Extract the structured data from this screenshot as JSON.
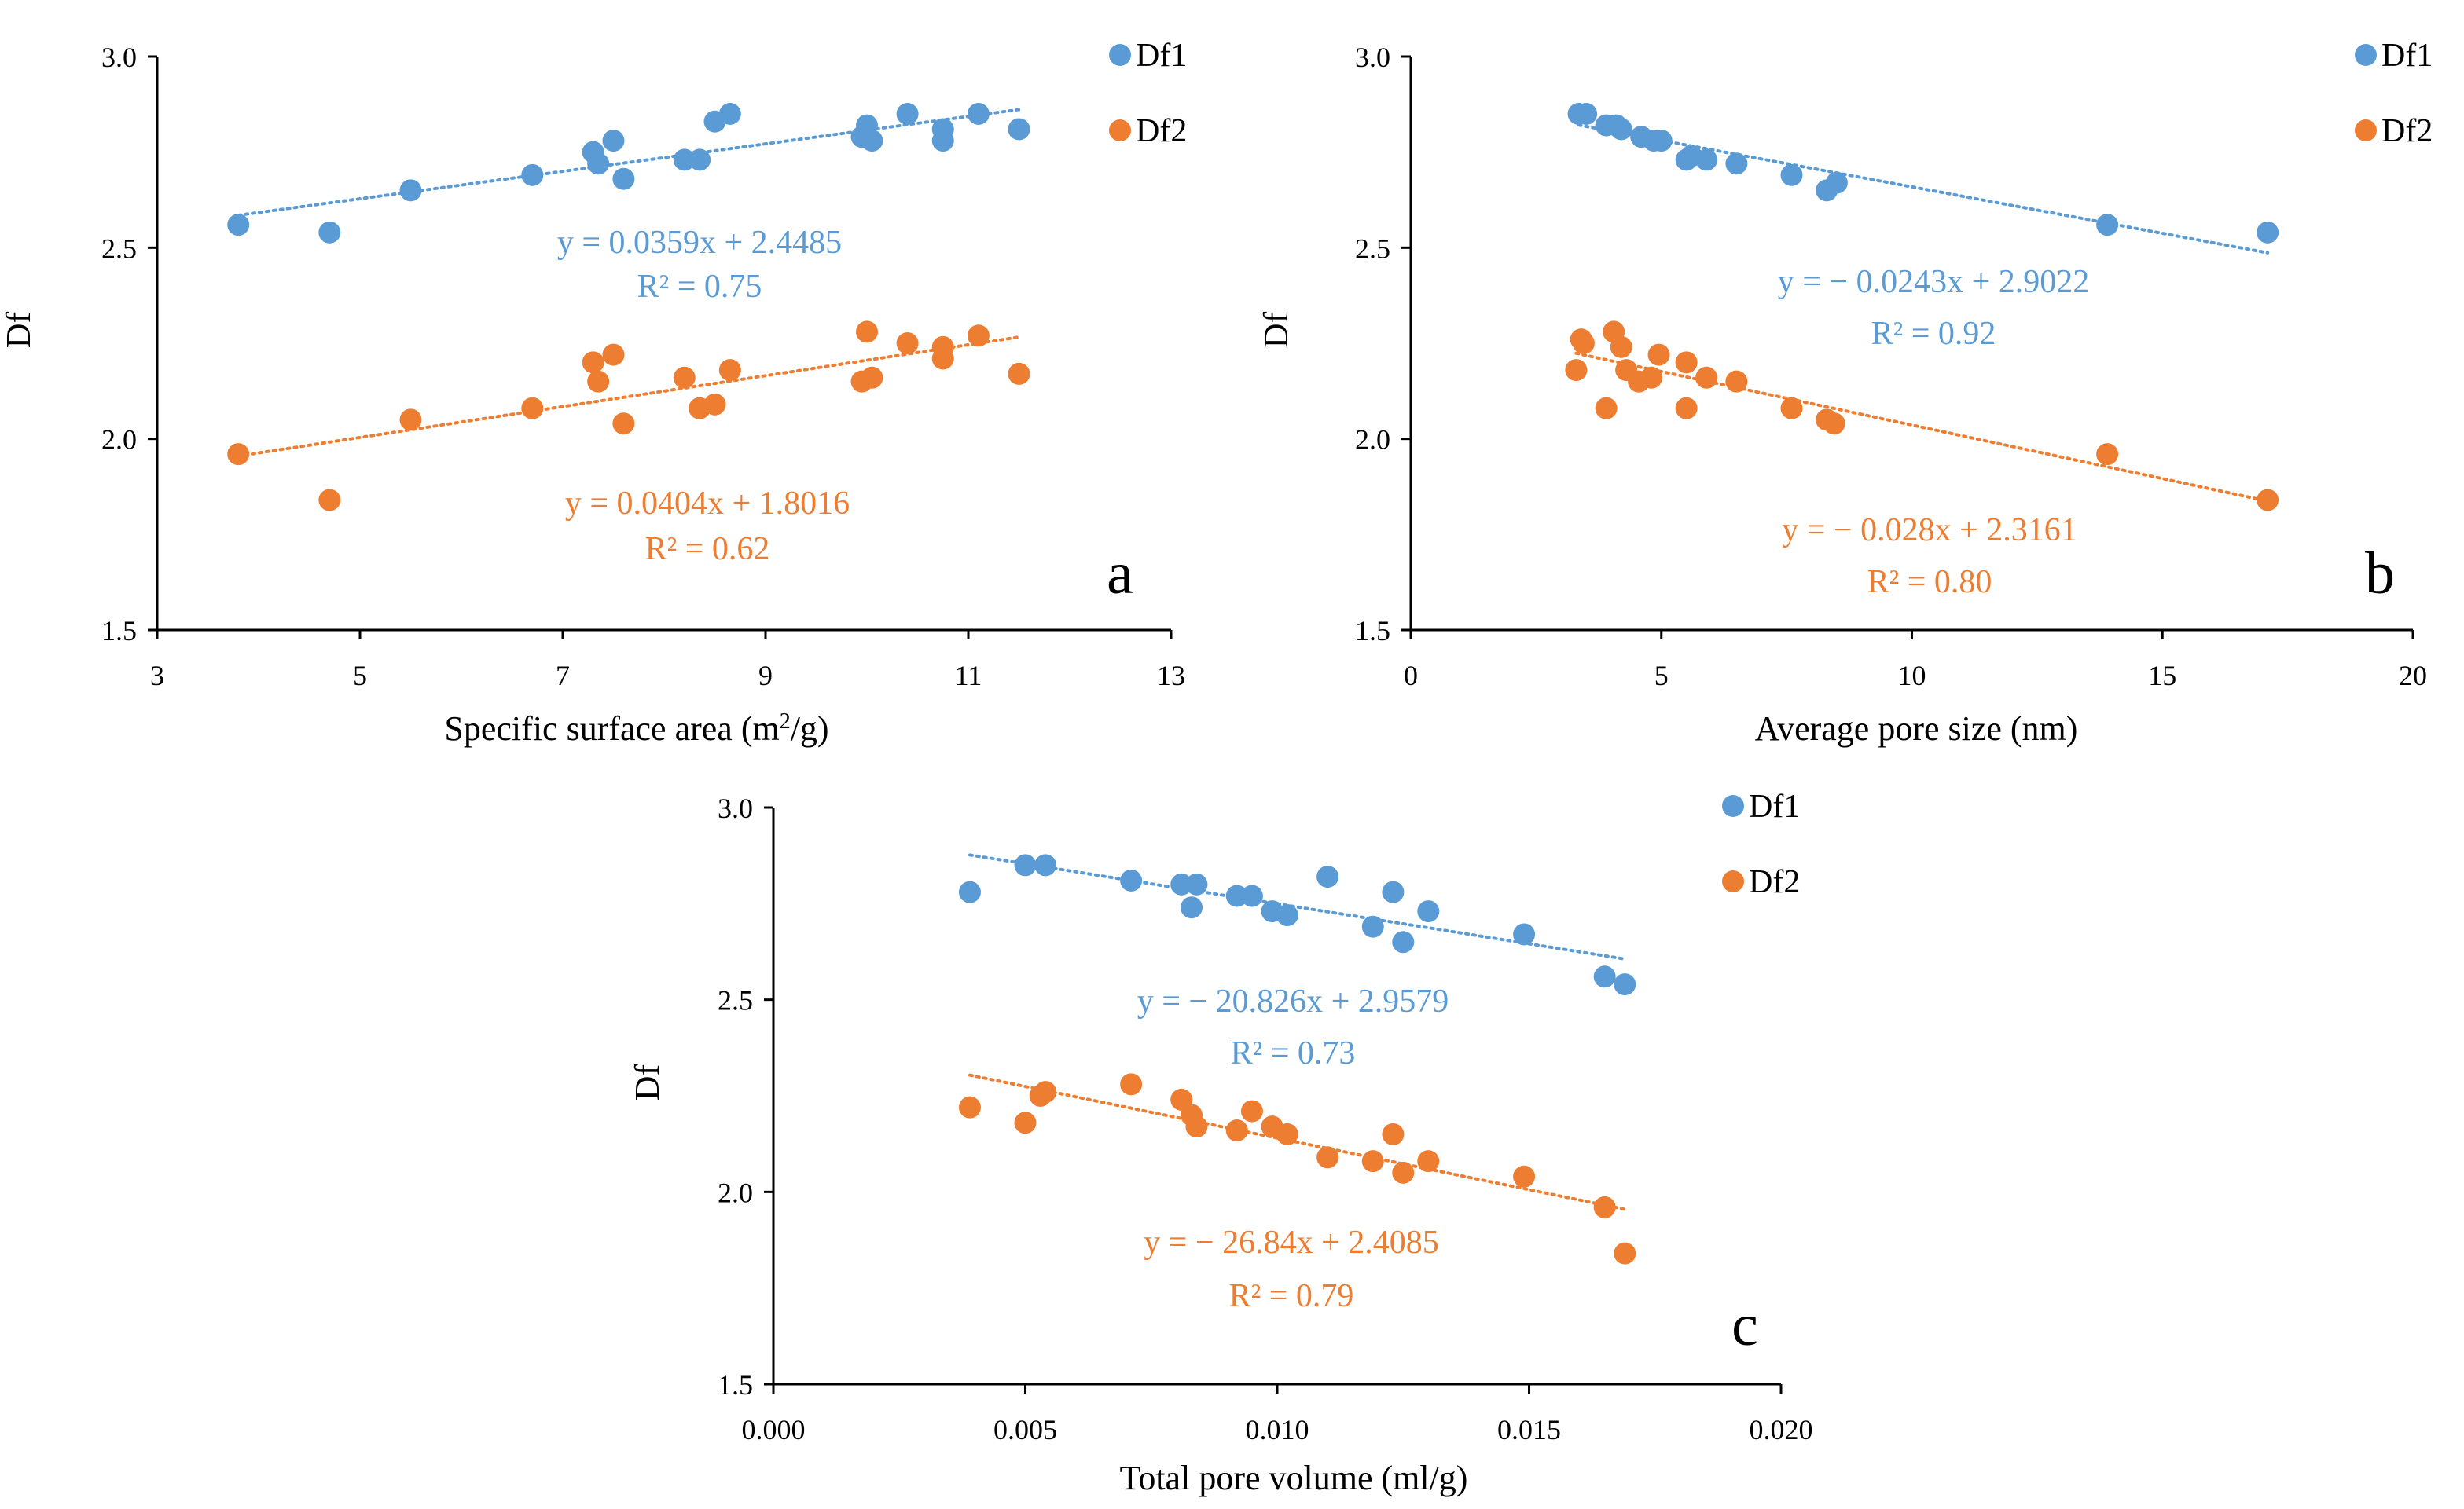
{
  "colors": {
    "df1": "#5B9BD5",
    "df2": "#ED7D31",
    "axis": "#000000",
    "tick_text": "#000000"
  },
  "chart_data": [
    {
      "type": "scatter",
      "panel_label": "a",
      "xlabel": "Specific surface area (m",
      "xlabel_sup": "2",
      "xlabel_tail": "/g)",
      "ylabel": "Df",
      "xlim": [
        3,
        13
      ],
      "ylim": [
        1.5,
        3.0
      ],
      "xticks": [
        3,
        5,
        7,
        9,
        11,
        13
      ],
      "xtick_labels": [
        "3",
        "5",
        "7",
        "9",
        "11",
        "13"
      ],
      "yticks": [
        1.5,
        2.0,
        2.5,
        3.0
      ],
      "ytick_labels": [
        "1.5",
        "2.0",
        "2.5",
        "3.0"
      ],
      "legend": [
        "Df1",
        "Df2"
      ],
      "series": [
        {
          "name": "Df1",
          "points": [
            [
              3.8,
              2.56
            ],
            [
              4.7,
              2.54
            ],
            [
              5.5,
              2.65
            ],
            [
              6.7,
              2.69
            ],
            [
              7.3,
              2.75
            ],
            [
              7.35,
              2.72
            ],
            [
              7.5,
              2.78
            ],
            [
              7.6,
              2.68
            ],
            [
              8.2,
              2.73
            ],
            [
              8.35,
              2.73
            ],
            [
              8.5,
              2.83
            ],
            [
              8.65,
              2.85
            ],
            [
              9.95,
              2.79
            ],
            [
              10.0,
              2.82
            ],
            [
              10.05,
              2.78
            ],
            [
              10.4,
              2.85
            ],
            [
              10.75,
              2.81
            ],
            [
              10.75,
              2.78
            ],
            [
              11.1,
              2.85
            ],
            [
              11.5,
              2.81
            ]
          ],
          "trend": {
            "slope": 0.0359,
            "intercept": 2.4485,
            "x_range": [
              3.8,
              11.5
            ]
          },
          "equation": "y = 0.0359x + 2.4485",
          "r2": "R² = 0.75"
        },
        {
          "name": "Df2",
          "points": [
            [
              3.8,
              1.96
            ],
            [
              4.7,
              1.84
            ],
            [
              5.5,
              2.05
            ],
            [
              6.7,
              2.08
            ],
            [
              7.3,
              2.2
            ],
            [
              7.35,
              2.15
            ],
            [
              7.5,
              2.22
            ],
            [
              7.6,
              2.04
            ],
            [
              8.2,
              2.16
            ],
            [
              8.35,
              2.08
            ],
            [
              8.5,
              2.09
            ],
            [
              8.65,
              2.18
            ],
            [
              9.95,
              2.15
            ],
            [
              10.0,
              2.28
            ],
            [
              10.05,
              2.16
            ],
            [
              10.4,
              2.25
            ],
            [
              10.75,
              2.24
            ],
            [
              10.75,
              2.21
            ],
            [
              11.1,
              2.27
            ],
            [
              11.5,
              2.17
            ]
          ],
          "trend": {
            "slope": 0.0404,
            "intercept": 1.8016,
            "x_range": [
              3.8,
              11.5
            ]
          },
          "equation": "y = 0.0404x + 1.8016",
          "r2": "R² = 0.62"
        }
      ]
    },
    {
      "type": "scatter",
      "panel_label": "b",
      "xlabel": "Average  pore size (nm)",
      "ylabel": "Df",
      "xlim": [
        0,
        20
      ],
      "ylim": [
        1.5,
        3.0
      ],
      "xticks": [
        0,
        5,
        10,
        15,
        20
      ],
      "xtick_labels": [
        "0",
        "5",
        "10",
        "15",
        "20"
      ],
      "yticks": [
        1.5,
        2.0,
        2.5,
        3.0
      ],
      "ytick_labels": [
        "1.5",
        "2.0",
        "2.5",
        "3.0"
      ],
      "legend": [
        "Df1",
        "Df2"
      ],
      "series": [
        {
          "name": "Df1",
          "points": [
            [
              3.35,
              2.85
            ],
            [
              3.5,
              2.85
            ],
            [
              3.9,
              2.82
            ],
            [
              4.1,
              2.82
            ],
            [
              4.2,
              2.81
            ],
            [
              4.6,
              2.79
            ],
            [
              4.85,
              2.78
            ],
            [
              5.0,
              2.78
            ],
            [
              5.5,
              2.73
            ],
            [
              5.6,
              2.74
            ],
            [
              5.9,
              2.73
            ],
            [
              6.5,
              2.72
            ],
            [
              7.6,
              2.69
            ],
            [
              8.3,
              2.65
            ],
            [
              8.5,
              2.67
            ],
            [
              13.9,
              2.56
            ],
            [
              17.1,
              2.54
            ]
          ],
          "trend": {
            "slope": -0.0243,
            "intercept": 2.9022,
            "x_range": [
              3.35,
              17.1
            ]
          },
          "equation": "y = − 0.0243x + 2.9022",
          "r2": "R² = 0.92"
        },
        {
          "name": "Df2",
          "points": [
            [
              3.3,
              2.18
            ],
            [
              3.4,
              2.26
            ],
            [
              3.45,
              2.25
            ],
            [
              3.9,
              2.08
            ],
            [
              4.05,
              2.28
            ],
            [
              4.2,
              2.24
            ],
            [
              4.3,
              2.18
            ],
            [
              4.55,
              2.15
            ],
            [
              4.8,
              2.16
            ],
            [
              4.95,
              2.22
            ],
            [
              5.5,
              2.08
            ],
            [
              5.5,
              2.2
            ],
            [
              5.9,
              2.16
            ],
            [
              6.5,
              2.15
            ],
            [
              7.6,
              2.08
            ],
            [
              8.3,
              2.05
            ],
            [
              8.45,
              2.04
            ],
            [
              13.9,
              1.96
            ],
            [
              17.1,
              1.84
            ]
          ],
          "trend": {
            "slope": -0.028,
            "intercept": 2.3161,
            "x_range": [
              3.3,
              17.1
            ]
          },
          "equation": "y = − 0.028x + 2.3161",
          "r2": "R² = 0.80"
        }
      ]
    },
    {
      "type": "scatter",
      "panel_label": "c",
      "xlabel": "Total pore volume (ml/g)",
      "ylabel": "Df",
      "xlim": [
        0,
        0.02
      ],
      "ylim": [
        1.5,
        3.0
      ],
      "xticks": [
        0,
        0.005,
        0.01,
        0.015,
        0.02
      ],
      "xtick_labels": [
        "0.000",
        "0.005",
        "0.010",
        "0.015",
        "0.020"
      ],
      "yticks": [
        1.5,
        2.0,
        2.5,
        3.0
      ],
      "ytick_labels": [
        "1.5",
        "2.0",
        "2.5",
        "3.0"
      ],
      "legend": [
        "Df1",
        "Df2"
      ],
      "series": [
        {
          "name": "Df1",
          "points": [
            [
              0.0039,
              2.78
            ],
            [
              0.005,
              2.85
            ],
            [
              0.0054,
              2.85
            ],
            [
              0.0071,
              2.81
            ],
            [
              0.0081,
              2.8
            ],
            [
              0.0083,
              2.74
            ],
            [
              0.0084,
              2.8
            ],
            [
              0.0092,
              2.77
            ],
            [
              0.0095,
              2.77
            ],
            [
              0.0099,
              2.73
            ],
            [
              0.0102,
              2.72
            ],
            [
              0.011,
              2.82
            ],
            [
              0.0119,
              2.69
            ],
            [
              0.0123,
              2.78
            ],
            [
              0.0125,
              2.65
            ],
            [
              0.013,
              2.73
            ],
            [
              0.0149,
              2.67
            ],
            [
              0.0165,
              2.56
            ],
            [
              0.0169,
              2.54
            ]
          ],
          "trend": {
            "slope": -20.826,
            "intercept": 2.9579,
            "x_range": [
              0.0039,
              0.0169
            ]
          },
          "equation": "y = − 20.826x + 2.9579",
          "r2": "R² = 0.73"
        },
        {
          "name": "Df2",
          "points": [
            [
              0.0039,
              2.22
            ],
            [
              0.005,
              2.18
            ],
            [
              0.0053,
              2.25
            ],
            [
              0.0054,
              2.26
            ],
            [
              0.0071,
              2.28
            ],
            [
              0.0081,
              2.24
            ],
            [
              0.0083,
              2.2
            ],
            [
              0.0084,
              2.17
            ],
            [
              0.0092,
              2.16
            ],
            [
              0.0095,
              2.21
            ],
            [
              0.0099,
              2.17
            ],
            [
              0.0102,
              2.15
            ],
            [
              0.011,
              2.09
            ],
            [
              0.0119,
              2.08
            ],
            [
              0.0123,
              2.15
            ],
            [
              0.0125,
              2.05
            ],
            [
              0.013,
              2.08
            ],
            [
              0.0149,
              2.04
            ],
            [
              0.0165,
              1.96
            ],
            [
              0.0169,
              1.84
            ]
          ],
          "trend": {
            "slope": -26.84,
            "intercept": 2.4085,
            "x_range": [
              0.0039,
              0.0169
            ]
          },
          "equation": "y = − 26.84x + 2.4085",
          "r2": "R² = 0.79"
        }
      ]
    }
  ]
}
